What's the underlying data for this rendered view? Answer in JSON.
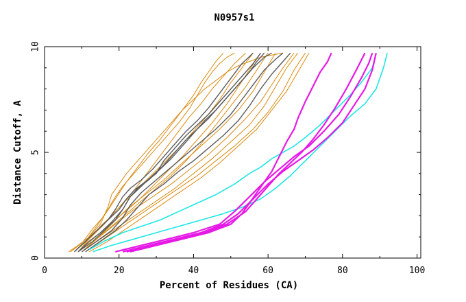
{
  "chart_data": {
    "type": "line",
    "title": "N0957s1",
    "xlabel": "Percent of Residues (CA)",
    "ylabel": "Distance Cutoff, A",
    "xlim": [
      0,
      101
    ],
    "ylim": [
      0,
      10
    ],
    "xticks": [
      0,
      20,
      40,
      60,
      80,
      100
    ],
    "yticks": [
      0,
      5,
      10
    ],
    "tick_labels_x": [
      "0",
      "20",
      "40",
      "60",
      "80",
      "100"
    ],
    "tick_labels_y": [
      "0",
      "5",
      "10"
    ],
    "grid": false,
    "legend": "none",
    "colors": {
      "orange": "#d9890f",
      "gray": "#5a5a5a",
      "cyan": "#1ee6e6",
      "magenta": "#e619e6"
    },
    "series": [
      {
        "name": "orange-1",
        "color": "orange",
        "width": 1,
        "x": [
          6.5,
          9,
          12,
          15,
          17,
          18,
          20,
          22,
          25,
          28,
          31,
          34,
          37,
          40,
          43,
          46,
          49,
          52,
          55,
          58,
          61,
          64
        ],
        "y": [
          0.3,
          0.6,
          1.0,
          1.6,
          2.4,
          3.0,
          3.5,
          4.0,
          4.6,
          5.2,
          5.8,
          6.4,
          7.0,
          7.5,
          8.0,
          8.4,
          8.8,
          9.1,
          9.3,
          9.5,
          9.6,
          9.7
        ]
      },
      {
        "name": "orange-2",
        "color": "orange",
        "width": 1,
        "x": [
          7,
          10,
          13,
          16,
          19,
          22,
          25,
          28,
          31,
          34,
          37,
          40,
          42,
          44,
          46,
          48
        ],
        "y": [
          0.3,
          0.7,
          1.4,
          2.0,
          2.8,
          3.6,
          4.3,
          5.0,
          5.6,
          6.3,
          7.0,
          7.7,
          8.3,
          8.8,
          9.3,
          9.7
        ]
      },
      {
        "name": "orange-3",
        "color": "orange",
        "width": 1,
        "x": [
          8,
          11,
          14,
          17,
          19,
          21,
          24,
          27,
          30,
          33,
          36,
          39,
          41,
          43,
          45,
          47,
          49,
          51
        ],
        "y": [
          0.3,
          0.8,
          1.5,
          2.3,
          2.9,
          3.4,
          4.0,
          4.6,
          5.2,
          5.8,
          6.4,
          7.1,
          7.7,
          8.3,
          8.8,
          9.2,
          9.5,
          9.7
        ]
      },
      {
        "name": "orange-4",
        "color": "orange",
        "width": 1,
        "x": [
          9,
          12,
          15,
          18,
          21,
          24,
          27,
          30,
          33,
          36,
          39,
          42,
          45,
          48,
          51,
          54
        ],
        "y": [
          0.3,
          0.9,
          1.5,
          2.0,
          2.6,
          3.2,
          3.9,
          4.6,
          5.3,
          6.0,
          6.7,
          7.3,
          8.0,
          8.6,
          9.2,
          9.7
        ]
      },
      {
        "name": "orange-5",
        "color": "orange",
        "width": 1,
        "x": [
          8,
          12,
          16,
          20,
          24,
          28,
          32,
          36,
          40,
          44,
          47,
          50,
          53,
          56
        ],
        "y": [
          0.3,
          0.9,
          1.6,
          2.4,
          3.1,
          3.8,
          4.5,
          5.2,
          6.0,
          6.8,
          7.5,
          8.3,
          9.0,
          9.7
        ]
      },
      {
        "name": "orange-6",
        "color": "orange",
        "width": 1,
        "x": [
          9,
          13,
          17,
          21,
          25,
          29,
          33,
          37,
          41,
          45,
          49,
          52,
          55,
          58
        ],
        "y": [
          0.3,
          0.9,
          1.5,
          2.1,
          2.7,
          3.4,
          4.1,
          4.8,
          5.6,
          6.4,
          7.3,
          8.1,
          8.9,
          9.7
        ]
      },
      {
        "name": "orange-7",
        "color": "orange",
        "width": 1,
        "x": [
          10,
          14,
          18,
          22,
          26,
          30,
          34,
          38,
          42,
          46,
          50,
          54,
          57,
          60
        ],
        "y": [
          0.3,
          0.9,
          1.5,
          2.1,
          2.7,
          3.3,
          3.9,
          4.6,
          5.4,
          6.3,
          7.2,
          8.1,
          8.9,
          9.7
        ]
      },
      {
        "name": "orange-8",
        "color": "orange",
        "width": 1,
        "x": [
          9,
          14,
          19,
          24,
          29,
          34,
          39,
          44,
          49,
          54,
          58,
          61,
          64,
          67
        ],
        "y": [
          0.3,
          0.9,
          1.6,
          2.3,
          2.9,
          3.5,
          4.2,
          4.9,
          5.7,
          6.6,
          7.4,
          8.2,
          9.0,
          9.7
        ]
      },
      {
        "name": "orange-9",
        "color": "orange",
        "width": 1,
        "x": [
          10,
          15,
          20,
          25,
          30,
          35,
          40,
          45,
          50,
          55,
          59,
          62,
          65,
          68
        ],
        "y": [
          0.3,
          0.9,
          1.5,
          2.1,
          2.7,
          3.3,
          4.0,
          4.7,
          5.5,
          6.3,
          7.2,
          8.1,
          9.0,
          9.7
        ]
      },
      {
        "name": "orange-10",
        "color": "orange",
        "width": 1,
        "x": [
          11,
          16,
          21,
          26,
          31,
          36,
          41,
          46,
          51,
          56,
          60,
          64,
          67,
          70
        ],
        "y": [
          0.3,
          0.9,
          1.5,
          2.1,
          2.7,
          3.3,
          3.9,
          4.6,
          5.3,
          6.1,
          6.9,
          7.9,
          8.9,
          9.7
        ]
      },
      {
        "name": "orange-11",
        "color": "orange",
        "width": 1,
        "x": [
          12,
          17,
          22,
          27,
          32,
          37,
          42,
          47,
          52,
          57,
          61,
          65,
          68,
          71
        ],
        "y": [
          0.3,
          0.8,
          1.4,
          2.0,
          2.6,
          3.2,
          3.8,
          4.5,
          5.3,
          6.1,
          7.0,
          7.9,
          8.8,
          9.7
        ]
      },
      {
        "name": "orange-12",
        "color": "orange",
        "width": 1,
        "x": [
          10,
          14,
          18,
          22,
          27,
          32,
          37,
          42,
          47,
          52,
          56,
          59,
          62
        ],
        "y": [
          0.3,
          0.9,
          1.6,
          2.3,
          3.0,
          3.7,
          4.5,
          5.3,
          6.1,
          7.0,
          7.9,
          8.8,
          9.7
        ]
      },
      {
        "name": "gray-1",
        "color": "gray",
        "width": 1.4,
        "x": [
          8,
          11,
          14,
          17,
          20,
          22,
          24,
          27,
          30,
          32,
          35,
          38,
          41,
          44,
          47,
          50,
          53,
          56,
          58
        ],
        "y": [
          0.3,
          0.8,
          1.3,
          1.8,
          2.3,
          2.8,
          3.2,
          3.6,
          4.0,
          4.6,
          5.2,
          5.8,
          6.3,
          6.8,
          7.4,
          8.0,
          8.6,
          9.2,
          9.7
        ]
      },
      {
        "name": "gray-2",
        "color": "gray",
        "width": 1.4,
        "x": [
          9,
          12,
          15,
          18,
          21,
          23,
          25,
          28,
          31,
          34,
          37,
          40,
          43,
          46,
          49,
          52,
          55,
          57,
          59
        ],
        "y": [
          0.3,
          0.8,
          1.2,
          1.7,
          2.3,
          2.9,
          3.3,
          3.7,
          4.2,
          4.7,
          5.3,
          5.9,
          6.5,
          7.0,
          7.6,
          8.2,
          8.8,
          9.3,
          9.7
        ]
      },
      {
        "name": "gray-3",
        "color": "gray",
        "width": 1.4,
        "x": [
          9,
          13,
          16,
          19,
          21,
          23,
          26,
          29,
          32,
          35,
          38,
          41,
          44,
          47,
          50,
          53,
          56,
          59,
          61
        ],
        "y": [
          0.3,
          0.8,
          1.3,
          1.8,
          2.3,
          2.9,
          3.4,
          3.9,
          4.4,
          5.0,
          5.6,
          6.1,
          6.6,
          7.2,
          7.8,
          8.4,
          9.0,
          9.5,
          9.7
        ]
      },
      {
        "name": "gray-4",
        "color": "gray",
        "width": 1.4,
        "x": [
          10,
          14,
          18,
          21,
          23,
          26,
          30,
          34,
          38,
          42,
          46,
          50,
          53,
          56,
          59,
          62,
          64
        ],
        "y": [
          0.3,
          0.8,
          1.3,
          1.9,
          2.5,
          3.1,
          3.7,
          4.3,
          4.9,
          5.5,
          6.1,
          6.8,
          7.5,
          8.2,
          8.9,
          9.4,
          9.7
        ]
      },
      {
        "name": "gray-5",
        "color": "gray",
        "width": 1.4,
        "x": [
          11,
          15,
          19,
          22,
          25,
          28,
          32,
          36,
          40,
          44,
          48,
          52,
          55,
          58,
          61,
          64,
          66
        ],
        "y": [
          0.3,
          0.8,
          1.3,
          1.8,
          2.4,
          3.0,
          3.5,
          4.1,
          4.6,
          5.2,
          5.8,
          6.5,
          7.2,
          8.0,
          8.7,
          9.3,
          9.7
        ]
      },
      {
        "name": "gray-6",
        "color": "gray",
        "width": 1.4,
        "x": [
          8,
          11,
          14,
          17,
          19,
          21,
          23,
          26,
          29,
          32,
          35,
          38,
          41,
          44,
          47,
          50,
          53,
          56
        ],
        "y": [
          0.3,
          0.8,
          1.3,
          1.8,
          2.3,
          2.9,
          3.3,
          3.7,
          4.2,
          4.8,
          5.4,
          6.0,
          6.5,
          7.1,
          7.8,
          8.5,
          9.2,
          9.7
        ]
      },
      {
        "name": "cyan-1",
        "color": "cyan",
        "width": 1.6,
        "x": [
          12,
          16,
          21,
          26,
          31,
          36,
          41,
          46,
          51,
          55,
          58,
          61,
          64,
          67,
          70,
          74,
          78,
          82,
          85,
          88,
          89
        ],
        "y": [
          0.4,
          0.8,
          1.2,
          1.5,
          1.8,
          2.2,
          2.6,
          3.0,
          3.5,
          4.0,
          4.3,
          4.7,
          5.0,
          5.3,
          5.7,
          6.3,
          7.0,
          7.7,
          8.3,
          9.0,
          9.7
        ]
      },
      {
        "name": "cyan-2",
        "color": "cyan",
        "width": 1.6,
        "x": [
          13,
          18,
          24,
          30,
          36,
          42,
          48,
          53,
          58,
          62,
          66,
          70,
          74,
          78,
          82,
          86,
          89,
          91,
          92
        ],
        "y": [
          0.3,
          0.6,
          0.9,
          1.2,
          1.5,
          1.8,
          2.1,
          2.4,
          2.8,
          3.3,
          3.9,
          4.6,
          5.3,
          6.0,
          6.7,
          7.3,
          8.0,
          9.0,
          9.7
        ]
      },
      {
        "name": "magenta-1",
        "color": "magenta",
        "width": 2.2,
        "x": [
          23,
          30,
          37,
          44,
          50,
          53,
          55,
          57,
          59,
          61,
          63,
          65,
          67,
          68,
          70,
          72,
          74,
          76,
          77
        ],
        "y": [
          0.3,
          0.6,
          0.9,
          1.2,
          1.6,
          2.1,
          2.6,
          3.1,
          3.6,
          4.1,
          4.8,
          5.5,
          6.1,
          6.6,
          7.4,
          8.1,
          8.8,
          9.3,
          9.7
        ]
      },
      {
        "name": "magenta-2",
        "color": "magenta",
        "width": 2.2,
        "x": [
          22,
          29,
          36,
          43,
          49,
          54,
          57,
          60,
          63,
          66,
          69,
          72,
          75,
          78,
          81,
          84,
          86
        ],
        "y": [
          0.3,
          0.6,
          0.9,
          1.2,
          1.6,
          2.2,
          2.8,
          3.4,
          4.0,
          4.5,
          5.0,
          5.6,
          6.3,
          7.1,
          8.0,
          9.0,
          9.7
        ]
      },
      {
        "name": "magenta-3",
        "color": "magenta",
        "width": 2.2,
        "x": [
          21,
          28,
          35,
          42,
          48,
          52,
          56,
          60,
          64,
          68,
          72,
          76,
          80,
          83,
          86,
          88,
          89
        ],
        "y": [
          0.3,
          0.6,
          0.9,
          1.2,
          1.6,
          2.1,
          2.8,
          3.5,
          4.1,
          4.6,
          5.1,
          5.7,
          6.4,
          7.2,
          8.0,
          8.9,
          9.7
        ]
      },
      {
        "name": "magenta-4",
        "color": "magenta",
        "width": 2.2,
        "x": [
          19,
          26,
          33,
          40,
          47,
          51,
          55,
          59,
          63,
          67,
          71,
          75,
          79,
          82,
          85,
          87,
          88
        ],
        "y": [
          0.3,
          0.6,
          0.9,
          1.2,
          1.6,
          2.2,
          2.9,
          3.6,
          4.2,
          4.8,
          5.3,
          6.0,
          6.8,
          7.6,
          8.5,
          9.2,
          9.7
        ]
      }
    ]
  }
}
